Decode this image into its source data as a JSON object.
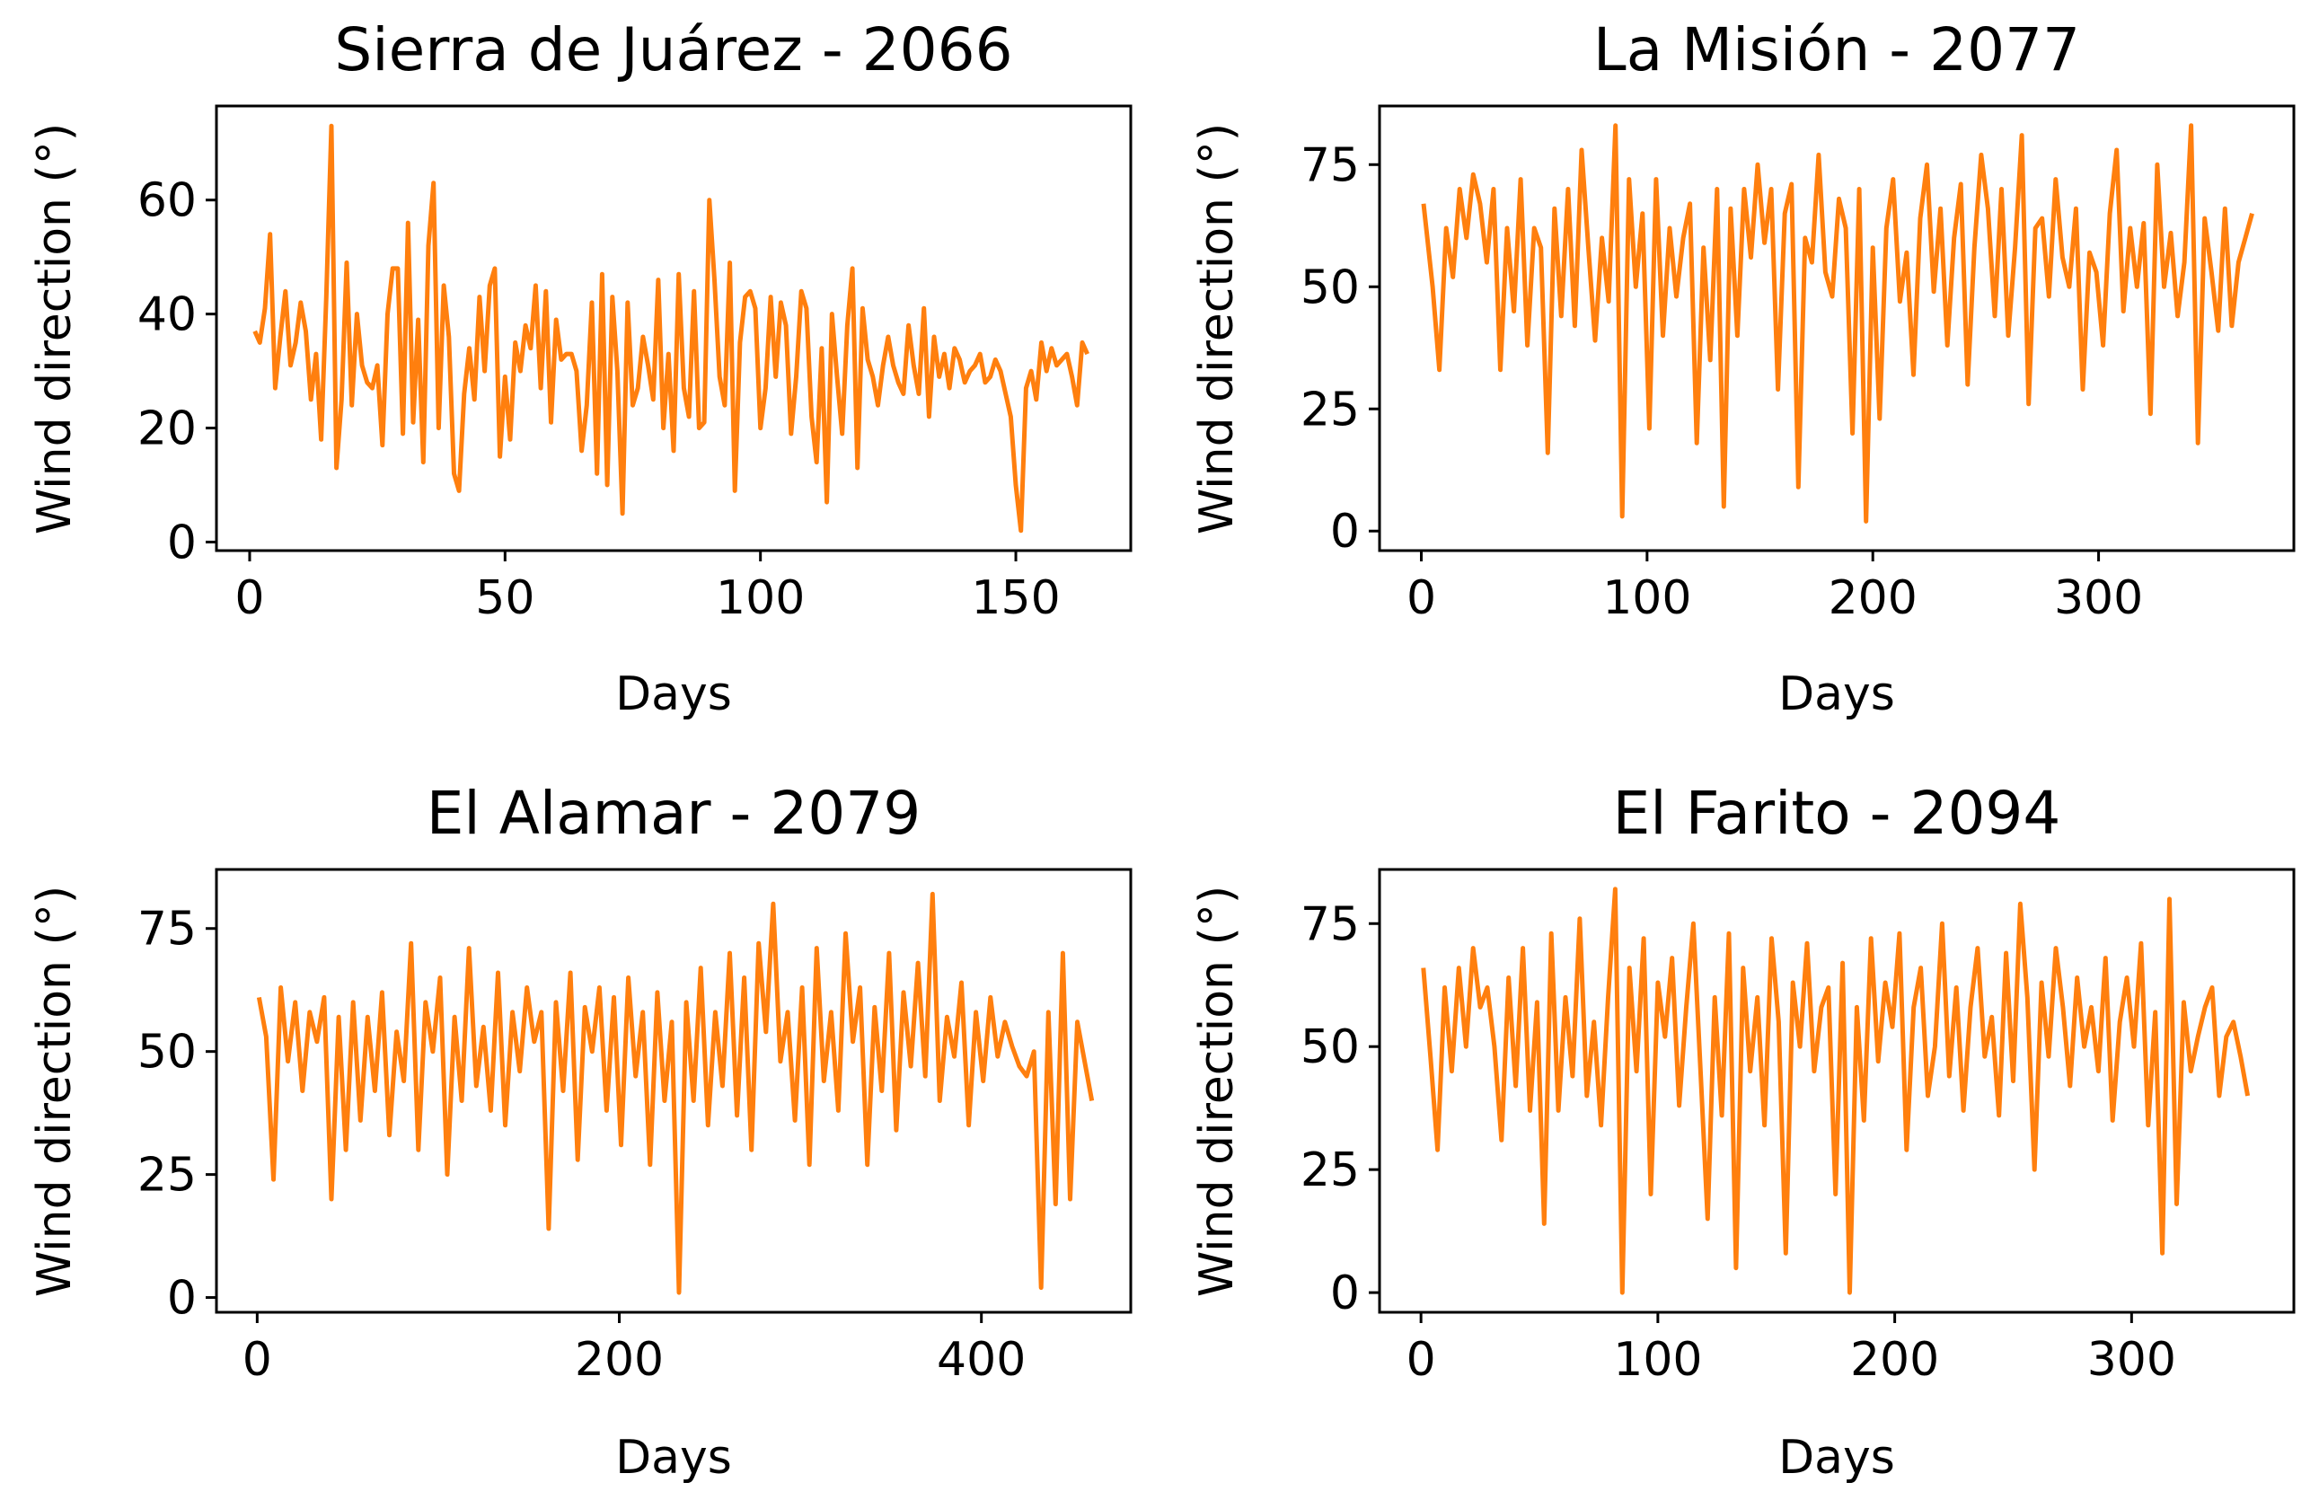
{
  "line_color": "#ff7f0e",
  "chart_data": [
    {
      "type": "line",
      "title": "Sierra de Juárez - 2066",
      "xlabel": "Days",
      "ylabel": "Wind direction (°)",
      "xlim": [
        -6.5,
        172.5
      ],
      "ylim": [
        -1.5,
        76.5
      ],
      "xticks": [
        0,
        50,
        100,
        150
      ],
      "yticks": [
        0,
        20,
        40,
        60
      ],
      "series": [
        {
          "x": [
            1,
            2,
            3,
            4,
            5,
            6,
            7,
            8,
            9,
            10,
            11,
            12,
            13,
            14,
            15,
            16,
            17,
            18,
            19,
            20,
            21,
            22,
            23,
            24,
            25,
            26,
            27,
            28,
            29,
            30,
            31,
            32,
            33,
            34,
            35,
            36,
            37,
            38,
            39,
            40,
            41,
            42,
            43,
            44,
            45,
            46,
            47,
            48,
            49,
            50,
            51,
            52,
            53,
            54,
            55,
            56,
            57,
            58,
            59,
            60,
            61,
            62,
            63,
            64,
            65,
            66,
            67,
            68,
            69,
            70,
            71,
            72,
            73,
            74,
            75,
            76,
            77,
            78,
            79,
            80,
            81,
            82,
            83,
            84,
            85,
            86,
            87,
            88,
            89,
            90,
            91,
            92,
            93,
            94,
            95,
            96,
            97,
            98,
            99,
            100,
            101,
            102,
            103,
            104,
            105,
            106,
            107,
            108,
            109,
            110,
            111,
            112,
            113,
            114,
            115,
            116,
            117,
            118,
            119,
            120,
            121,
            122,
            123,
            124,
            125,
            126,
            127,
            128,
            129,
            130,
            131,
            132,
            133,
            134,
            135,
            136,
            137,
            138,
            139,
            140,
            141,
            142,
            143,
            144,
            145,
            146,
            147,
            148,
            149,
            150,
            151,
            152,
            153,
            154,
            155,
            156,
            157,
            158,
            159,
            160,
            161,
            162,
            163,
            164
          ],
          "y": [
            37,
            35,
            41,
            54,
            27,
            36,
            44,
            31,
            35,
            42,
            37,
            25,
            33,
            18,
            43,
            73,
            13,
            25,
            49,
            24,
            40,
            31,
            28,
            27,
            31,
            17,
            40,
            48,
            48,
            19,
            56,
            21,
            39,
            14,
            52,
            63,
            20,
            45,
            36,
            12,
            9,
            26,
            34,
            25,
            43,
            30,
            45,
            48,
            15,
            29,
            18,
            35,
            30,
            38,
            34,
            45,
            27,
            44,
            21,
            39,
            32,
            33,
            33,
            30,
            16,
            24,
            42,
            12,
            47,
            10,
            43,
            30,
            5,
            42,
            24,
            27,
            36,
            31,
            25,
            46,
            20,
            33,
            16,
            47,
            27,
            22,
            44,
            20,
            21,
            60,
            46,
            29,
            24,
            49,
            9,
            35,
            43,
            44,
            41,
            20,
            27,
            43,
            29,
            42,
            38,
            19,
            29,
            44,
            41,
            22,
            14,
            34,
            7,
            40,
            29,
            19,
            38,
            48,
            13,
            41,
            32,
            29,
            24,
            31,
            36,
            31,
            28,
            26,
            38,
            31,
            26,
            41,
            22,
            36,
            29,
            33,
            27,
            34,
            32,
            28,
            30,
            31,
            33,
            28,
            29,
            32,
            30,
            26,
            22,
            10,
            2,
            27,
            30,
            25,
            35,
            30,
            34,
            31,
            32,
            33,
            29,
            24,
            35,
            33
          ]
        }
      ]
    },
    {
      "type": "line",
      "title": "La Misión - 2077",
      "xlabel": "Days",
      "ylabel": "Wind direction (°)",
      "xlim": [
        -18.5,
        386.5
      ],
      "ylim": [
        -4,
        87
      ],
      "xticks": [
        0,
        100,
        200,
        300
      ],
      "yticks": [
        0,
        25,
        50,
        75
      ],
      "series": [
        {
          "x": [
            1,
            5,
            8,
            11,
            14,
            17,
            20,
            23,
            26,
            29,
            32,
            35,
            38,
            41,
            44,
            47,
            50,
            53,
            56,
            59,
            62,
            65,
            68,
            71,
            74,
            77,
            80,
            83,
            86,
            89,
            92,
            95,
            98,
            101,
            104,
            107,
            110,
            113,
            116,
            119,
            122,
            125,
            128,
            131,
            134,
            137,
            140,
            143,
            146,
            149,
            152,
            155,
            158,
            161,
            164,
            167,
            170,
            173,
            176,
            179,
            182,
            185,
            188,
            191,
            194,
            197,
            200,
            203,
            206,
            209,
            212,
            215,
            218,
            221,
            224,
            227,
            230,
            233,
            236,
            239,
            242,
            245,
            248,
            251,
            254,
            257,
            260,
            263,
            266,
            269,
            272,
            275,
            278,
            281,
            284,
            287,
            290,
            293,
            296,
            299,
            302,
            305,
            308,
            311,
            314,
            317,
            320,
            323,
            326,
            329,
            332,
            335,
            338,
            341,
            344,
            347,
            350,
            353,
            356,
            359,
            362,
            365,
            368
          ],
          "y": [
            67,
            50,
            33,
            62,
            52,
            70,
            60,
            73,
            67,
            55,
            70,
            33,
            62,
            45,
            72,
            38,
            62,
            58,
            16,
            66,
            44,
            70,
            42,
            78,
            58,
            39,
            60,
            47,
            83,
            3,
            72,
            50,
            65,
            21,
            72,
            40,
            62,
            48,
            60,
            67,
            18,
            58,
            35,
            70,
            5,
            66,
            40,
            70,
            56,
            75,
            59,
            70,
            29,
            65,
            71,
            9,
            60,
            55,
            77,
            53,
            48,
            68,
            62,
            20,
            70,
            2,
            58,
            23,
            62,
            72,
            47,
            57,
            32,
            64,
            75,
            49,
            66,
            38,
            60,
            71,
            30,
            58,
            77,
            66,
            44,
            70,
            40,
            58,
            81,
            26,
            62,
            64,
            48,
            72,
            56,
            50,
            66,
            29,
            57,
            53,
            38,
            65,
            78,
            45,
            62,
            50,
            63,
            24,
            75,
            50,
            61,
            44,
            55,
            83,
            18,
            64,
            53,
            41,
            66,
            42,
            55,
            60,
            65
          ]
        }
      ]
    },
    {
      "type": "line",
      "title": "El Alamar - 2079",
      "xlabel": "Days",
      "ylabel": "Wind direction (°)",
      "xlim": [
        -22.5,
        482.5
      ],
      "ylim": [
        -3,
        87
      ],
      "xticks": [
        0,
        200,
        400
      ],
      "yticks": [
        0,
        25,
        50,
        75
      ],
      "series": [
        {
          "x": [
            1,
            5,
            9,
            13,
            17,
            21,
            25,
            29,
            33,
            37,
            41,
            45,
            49,
            53,
            57,
            61,
            65,
            69,
            73,
            77,
            81,
            85,
            89,
            93,
            97,
            101,
            105,
            109,
            113,
            117,
            121,
            125,
            129,
            133,
            137,
            141,
            145,
            149,
            153,
            157,
            161,
            165,
            169,
            173,
            177,
            181,
            185,
            189,
            193,
            197,
            201,
            205,
            209,
            213,
            217,
            221,
            225,
            229,
            233,
            237,
            241,
            245,
            249,
            253,
            257,
            261,
            265,
            269,
            273,
            277,
            281,
            285,
            289,
            293,
            297,
            301,
            305,
            309,
            313,
            317,
            321,
            325,
            329,
            333,
            337,
            341,
            345,
            349,
            353,
            357,
            361,
            365,
            369,
            373,
            377,
            381,
            385,
            389,
            393,
            397,
            401,
            405,
            409,
            413,
            417,
            421,
            425,
            429,
            433,
            437,
            441,
            445,
            449,
            453,
            457,
            461
          ],
          "y": [
            61,
            53,
            24,
            63,
            48,
            60,
            42,
            58,
            52,
            61,
            20,
            57,
            30,
            60,
            36,
            57,
            42,
            62,
            33,
            54,
            44,
            72,
            30,
            60,
            50,
            65,
            25,
            57,
            40,
            71,
            43,
            55,
            38,
            66,
            35,
            58,
            46,
            63,
            52,
            58,
            14,
            60,
            42,
            66,
            28,
            59,
            50,
            63,
            38,
            61,
            31,
            65,
            45,
            58,
            27,
            62,
            40,
            56,
            1,
            60,
            40,
            67,
            35,
            58,
            43,
            70,
            37,
            65,
            30,
            72,
            54,
            80,
            48,
            58,
            36,
            63,
            27,
            71,
            44,
            58,
            38,
            74,
            52,
            63,
            27,
            59,
            42,
            70,
            34,
            62,
            47,
            68,
            45,
            82,
            40,
            57,
            49,
            64,
            35,
            58,
            44,
            61,
            49,
            56,
            51,
            47,
            45,
            50,
            2,
            58,
            19,
            70,
            20,
            56,
            48,
            40
          ]
        }
      ]
    },
    {
      "type": "line",
      "title": "El Farito - 2094",
      "xlabel": "Days",
      "ylabel": "Wind direction (°)",
      "xlim": [
        -17.5,
        368.5
      ],
      "ylim": [
        -4,
        86
      ],
      "xticks": [
        0,
        100,
        200,
        300
      ],
      "yticks": [
        0,
        25,
        50,
        75
      ],
      "series": [
        {
          "x": [
            1,
            4,
            7,
            10,
            13,
            16,
            19,
            22,
            25,
            28,
            31,
            34,
            37,
            40,
            43,
            46,
            49,
            52,
            55,
            58,
            61,
            64,
            67,
            70,
            73,
            76,
            79,
            82,
            85,
            88,
            91,
            94,
            97,
            100,
            103,
            106,
            109,
            112,
            115,
            118,
            121,
            124,
            127,
            130,
            133,
            136,
            139,
            142,
            145,
            148,
            151,
            154,
            157,
            160,
            163,
            166,
            169,
            172,
            175,
            178,
            181,
            184,
            187,
            190,
            193,
            196,
            199,
            202,
            205,
            208,
            211,
            214,
            217,
            220,
            223,
            226,
            229,
            232,
            235,
            238,
            241,
            244,
            247,
            250,
            253,
            256,
            259,
            262,
            265,
            268,
            271,
            274,
            277,
            280,
            283,
            286,
            289,
            292,
            295,
            298,
            301,
            304,
            307,
            310,
            313,
            316,
            319,
            322,
            325,
            328,
            331,
            334,
            337,
            340,
            343,
            346,
            349
          ],
          "y": [
            66,
            48,
            29,
            62,
            45,
            66,
            50,
            70,
            58,
            62,
            50,
            31,
            64,
            42,
            70,
            37,
            59,
            14,
            73,
            37,
            60,
            44,
            76,
            40,
            55,
            34,
            60,
            82,
            0,
            66,
            45,
            72,
            20,
            63,
            52,
            68,
            38,
            58,
            75,
            45,
            15,
            60,
            36,
            73,
            5,
            66,
            45,
            60,
            34,
            72,
            55,
            8,
            63,
            50,
            71,
            45,
            58,
            62,
            20,
            67,
            0,
            58,
            35,
            72,
            47,
            63,
            54,
            73,
            29,
            58,
            66,
            40,
            50,
            75,
            44,
            62,
            37,
            58,
            70,
            48,
            56,
            36,
            69,
            43,
            79,
            60,
            25,
            63,
            48,
            70,
            58,
            42,
            64,
            50,
            58,
            45,
            68,
            35,
            55,
            64,
            50,
            71,
            34,
            57,
            8,
            80,
            18,
            59,
            45,
            52,
            58,
            62,
            40,
            52,
            55,
            48,
            40
          ]
        }
      ]
    }
  ]
}
